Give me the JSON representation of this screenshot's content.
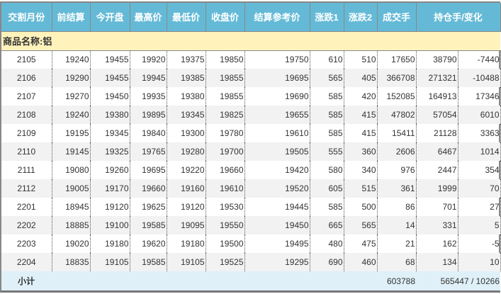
{
  "headers": [
    "交割月份",
    "前结算",
    "今开盘",
    "最高价",
    "最低价",
    "收盘价",
    "结算参考价",
    "涨跌1",
    "涨跌2",
    "成交手",
    "持仓手/变化"
  ],
  "category": "商品名称:铝",
  "rows": [
    [
      "2105",
      "19240",
      "19455",
      "19920",
      "19375",
      "19850",
      "19750",
      "610",
      "510",
      "17650",
      "38790",
      "-7440"
    ],
    [
      "2106",
      "19290",
      "19455",
      "19945",
      "19385",
      "19855",
      "19695",
      "565",
      "405",
      "366708",
      "271321",
      "-10488"
    ],
    [
      "2107",
      "19270",
      "19450",
      "19935",
      "19380",
      "19855",
      "19690",
      "585",
      "420",
      "152085",
      "164913",
      "17346"
    ],
    [
      "2108",
      "19240",
      "19380",
      "19895",
      "19345",
      "19825",
      "19655",
      "585",
      "415",
      "47802",
      "57054",
      "6010"
    ],
    [
      "2109",
      "19195",
      "19345",
      "19840",
      "19300",
      "19780",
      "19610",
      "585",
      "415",
      "15411",
      "21128",
      "3363"
    ],
    [
      "2110",
      "19145",
      "19325",
      "19765",
      "19280",
      "19700",
      "19505",
      "555",
      "360",
      "2606",
      "6467",
      "1014"
    ],
    [
      "2111",
      "19080",
      "19260",
      "19695",
      "19220",
      "19660",
      "19420",
      "580",
      "340",
      "976",
      "2447",
      "354"
    ],
    [
      "2112",
      "19005",
      "19170",
      "19660",
      "19160",
      "19610",
      "19520",
      "605",
      "515",
      "361",
      "1999",
      "70"
    ],
    [
      "2201",
      "18945",
      "19120",
      "19625",
      "19120",
      "19530",
      "19445",
      "585",
      "500",
      "86",
      "701",
      "27"
    ],
    [
      "2202",
      "18885",
      "19100",
      "19585",
      "19095",
      "19550",
      "19450",
      "665",
      "565",
      "14",
      "331",
      "5"
    ],
    [
      "2203",
      "19020",
      "19180",
      "19620",
      "19180",
      "19500",
      "19495",
      "480",
      "475",
      "21",
      "162",
      "-5"
    ],
    [
      "2204",
      "18835",
      "19105",
      "19585",
      "19105",
      "19525",
      "19295",
      "690",
      "460",
      "68",
      "134",
      "10"
    ]
  ],
  "subtotal": {
    "label": "小计",
    "volume": "603788",
    "holdings": "565447 / 10266"
  }
}
